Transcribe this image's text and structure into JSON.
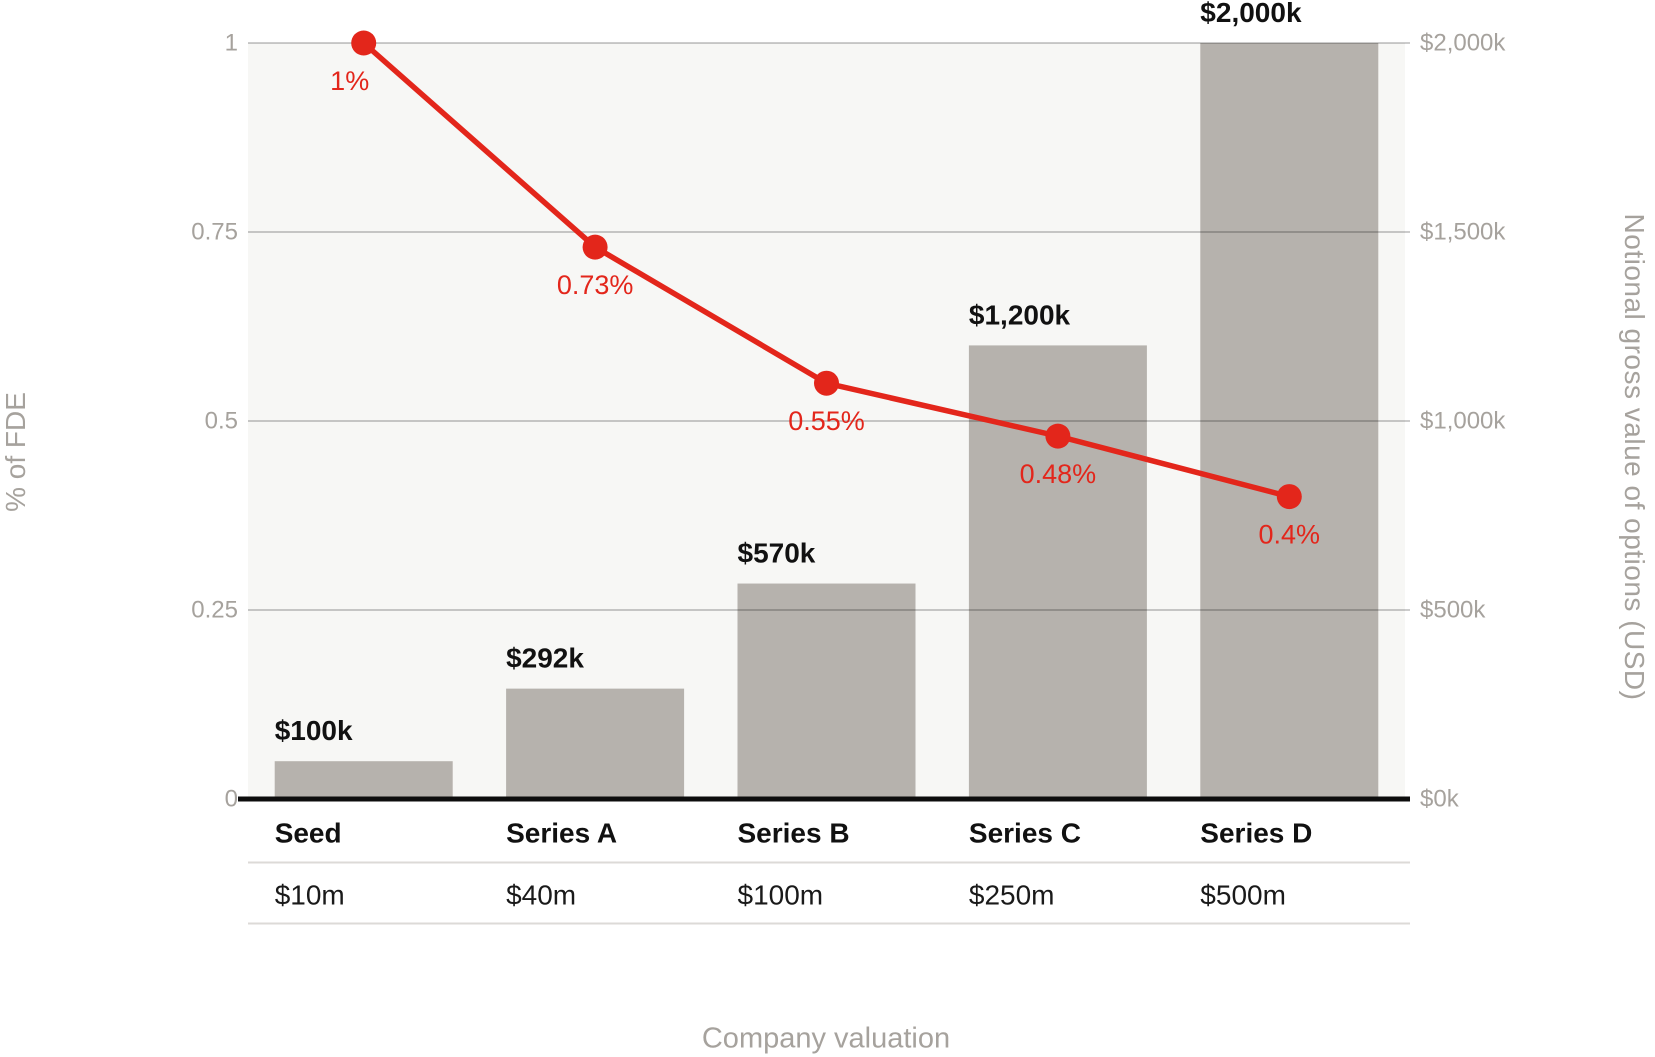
{
  "chart_data": {
    "type": "combo-bar-line",
    "categories": [
      "Seed",
      "Series A",
      "Series B",
      "Series C",
      "Series D"
    ],
    "valuations": [
      "$10m",
      "$40m",
      "$100m",
      "$250m",
      "$500m"
    ],
    "series": [
      {
        "name": "Notional gross value of options (USD)",
        "type": "bar",
        "axis": "right",
        "values": [
          100,
          292,
          570,
          1200,
          2000
        ],
        "labels": [
          "$100k",
          "$292k",
          "$570k",
          "$1,200k",
          "$2,000k"
        ]
      },
      {
        "name": "% of FDE",
        "type": "line",
        "axis": "left",
        "values": [
          1,
          0.73,
          0.55,
          0.48,
          0.4
        ],
        "labels": [
          "1%",
          "0.73%",
          "0.55%",
          "0.48%",
          "0.4%"
        ]
      }
    ],
    "left_axis": {
      "title": "% of FDE",
      "range": [
        0,
        1
      ],
      "ticks": [
        0,
        0.25,
        0.5,
        0.75,
        1
      ],
      "tick_labels": [
        "0",
        "0.25",
        "0.5",
        "0.75",
        "1"
      ]
    },
    "right_axis": {
      "title": "Notional gross value of options (USD)",
      "range": [
        0,
        2000
      ],
      "ticks": [
        0,
        500,
        1000,
        1500,
        2000
      ],
      "tick_labels": [
        "$0k",
        "$500k",
        "$1,000k",
        "$1,500k",
        "$2,000k"
      ]
    },
    "x_axis": {
      "title": "Company valuation"
    },
    "grid": true,
    "legend": "none"
  },
  "colors": {
    "line_red": "#e3261b",
    "bar_gray": "#b6b2ad",
    "plot_background": "#f7f7f5",
    "gridline": "rgba(0,0,0,0.2)",
    "tick_text": "#a6a29d",
    "axis_line": "#0d0d0d",
    "table_rule": "#dcdad7",
    "label_text": "#111111",
    "valuation_text": "#1a1a1a"
  }
}
